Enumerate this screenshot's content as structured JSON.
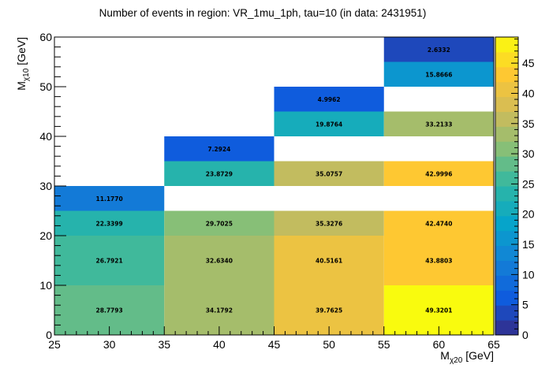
{
  "chart_data": {
    "type": "heatmap",
    "title": "Number of events in region: VR_1mu_1ph, tau=10 (in data: 2431951)",
    "xlabel": {
      "main": "M",
      "sub": "χ20",
      "unit": " [GeV]"
    },
    "ylabel": {
      "main": "M",
      "sub": "χ10",
      "unit": " [GeV]"
    },
    "xlim": [
      25,
      65
    ],
    "ylim": [
      0,
      60
    ],
    "x_ticks": [
      25,
      30,
      35,
      40,
      45,
      50,
      55,
      60,
      65
    ],
    "y_ticks": [
      0,
      10,
      20,
      30,
      40,
      50,
      60
    ],
    "z_range": [
      0,
      49.3201
    ],
    "z_ticks": [
      0,
      5,
      10,
      15,
      20,
      25,
      30,
      35,
      40,
      45
    ],
    "palette_colors": [
      "#352a87",
      "#0f5cdd",
      "#1481d6",
      "#06a4ca",
      "#2eb7a4",
      "#87bf77",
      "#d1bb59",
      "#fec832",
      "#f9fb0e"
    ],
    "cells": [
      {
        "x": [
          25,
          35
        ],
        "y": [
          0,
          10
        ],
        "value": 28.7793,
        "label": "28.7793"
      },
      {
        "x": [
          25,
          35
        ],
        "y": [
          10,
          20
        ],
        "value": 26.7921,
        "label": "26.7921"
      },
      {
        "x": [
          25,
          35
        ],
        "y": [
          20,
          25
        ],
        "value": 22.3399,
        "label": "22.3399"
      },
      {
        "x": [
          25,
          35
        ],
        "y": [
          25,
          30
        ],
        "value": 11.177,
        "label": "11.1770"
      },
      {
        "x": [
          35,
          45
        ],
        "y": [
          0,
          10
        ],
        "value": 34.1792,
        "label": "34.1792"
      },
      {
        "x": [
          35,
          45
        ],
        "y": [
          10,
          20
        ],
        "value": 32.634,
        "label": "32.6340"
      },
      {
        "x": [
          35,
          45
        ],
        "y": [
          20,
          25
        ],
        "value": 29.7025,
        "label": "29.7025"
      },
      {
        "x": [
          35,
          45
        ],
        "y": [
          30,
          35
        ],
        "value": 23.8729,
        "label": "23.8729"
      },
      {
        "x": [
          35,
          45
        ],
        "y": [
          35,
          40
        ],
        "value": 7.2924,
        "label": "7.2924"
      },
      {
        "x": [
          45,
          55
        ],
        "y": [
          0,
          10
        ],
        "value": 39.7625,
        "label": "39.7625"
      },
      {
        "x": [
          45,
          55
        ],
        "y": [
          10,
          20
        ],
        "value": 40.5161,
        "label": "40.5161"
      },
      {
        "x": [
          45,
          55
        ],
        "y": [
          20,
          25
        ],
        "value": 35.3276,
        "label": "35.3276"
      },
      {
        "x": [
          45,
          55
        ],
        "y": [
          30,
          35
        ],
        "value": 35.0757,
        "label": "35.0757"
      },
      {
        "x": [
          45,
          55
        ],
        "y": [
          40,
          45
        ],
        "value": 19.8764,
        "label": "19.8764"
      },
      {
        "x": [
          45,
          55
        ],
        "y": [
          45,
          50
        ],
        "value": 4.9962,
        "label": "4.9962"
      },
      {
        "x": [
          55,
          65
        ],
        "y": [
          0,
          10
        ],
        "value": 49.3201,
        "label": "49.3201"
      },
      {
        "x": [
          55,
          65
        ],
        "y": [
          10,
          20
        ],
        "value": 43.8803,
        "label": "43.8803"
      },
      {
        "x": [
          55,
          65
        ],
        "y": [
          20,
          25
        ],
        "value": 42.474,
        "label": "42.4740"
      },
      {
        "x": [
          55,
          65
        ],
        "y": [
          30,
          35
        ],
        "value": 42.9996,
        "label": "42.9996"
      },
      {
        "x": [
          55,
          65
        ],
        "y": [
          40,
          45
        ],
        "value": 33.2133,
        "label": "33.2133"
      },
      {
        "x": [
          55,
          65
        ],
        "y": [
          50,
          55
        ],
        "value": 15.8666,
        "label": "15.8666"
      },
      {
        "x": [
          55,
          65
        ],
        "y": [
          55,
          60
        ],
        "value": 2.6332,
        "label": "2.6332"
      }
    ]
  }
}
